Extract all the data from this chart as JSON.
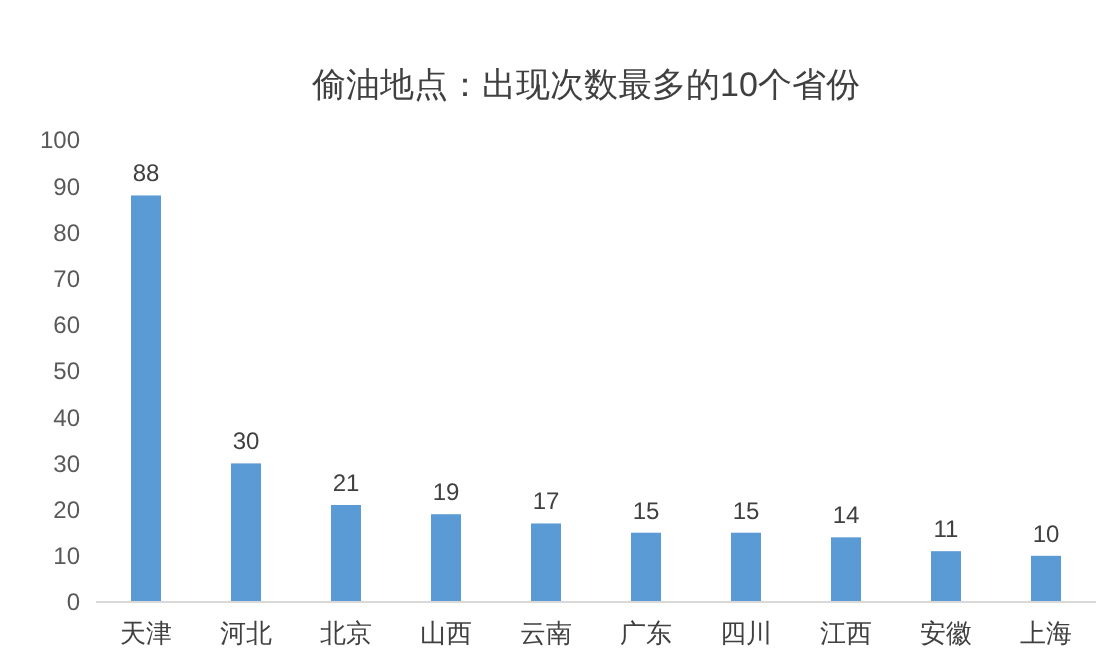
{
  "chart_data": {
    "type": "bar",
    "title": "偷油地点：出现次数最多的10个省份",
    "categories": [
      "天津",
      "河北",
      "北京",
      "山西",
      "云南",
      "广东",
      "四川",
      "江西",
      "安徽",
      "上海"
    ],
    "values": [
      88,
      30,
      21,
      19,
      17,
      15,
      15,
      14,
      11,
      10
    ],
    "color": "#5b9bd5",
    "ylim": [
      0,
      100
    ],
    "yticks": [
      0,
      10,
      20,
      30,
      40,
      50,
      60,
      70,
      80,
      90,
      100
    ],
    "grid": false,
    "data_labels": true
  }
}
